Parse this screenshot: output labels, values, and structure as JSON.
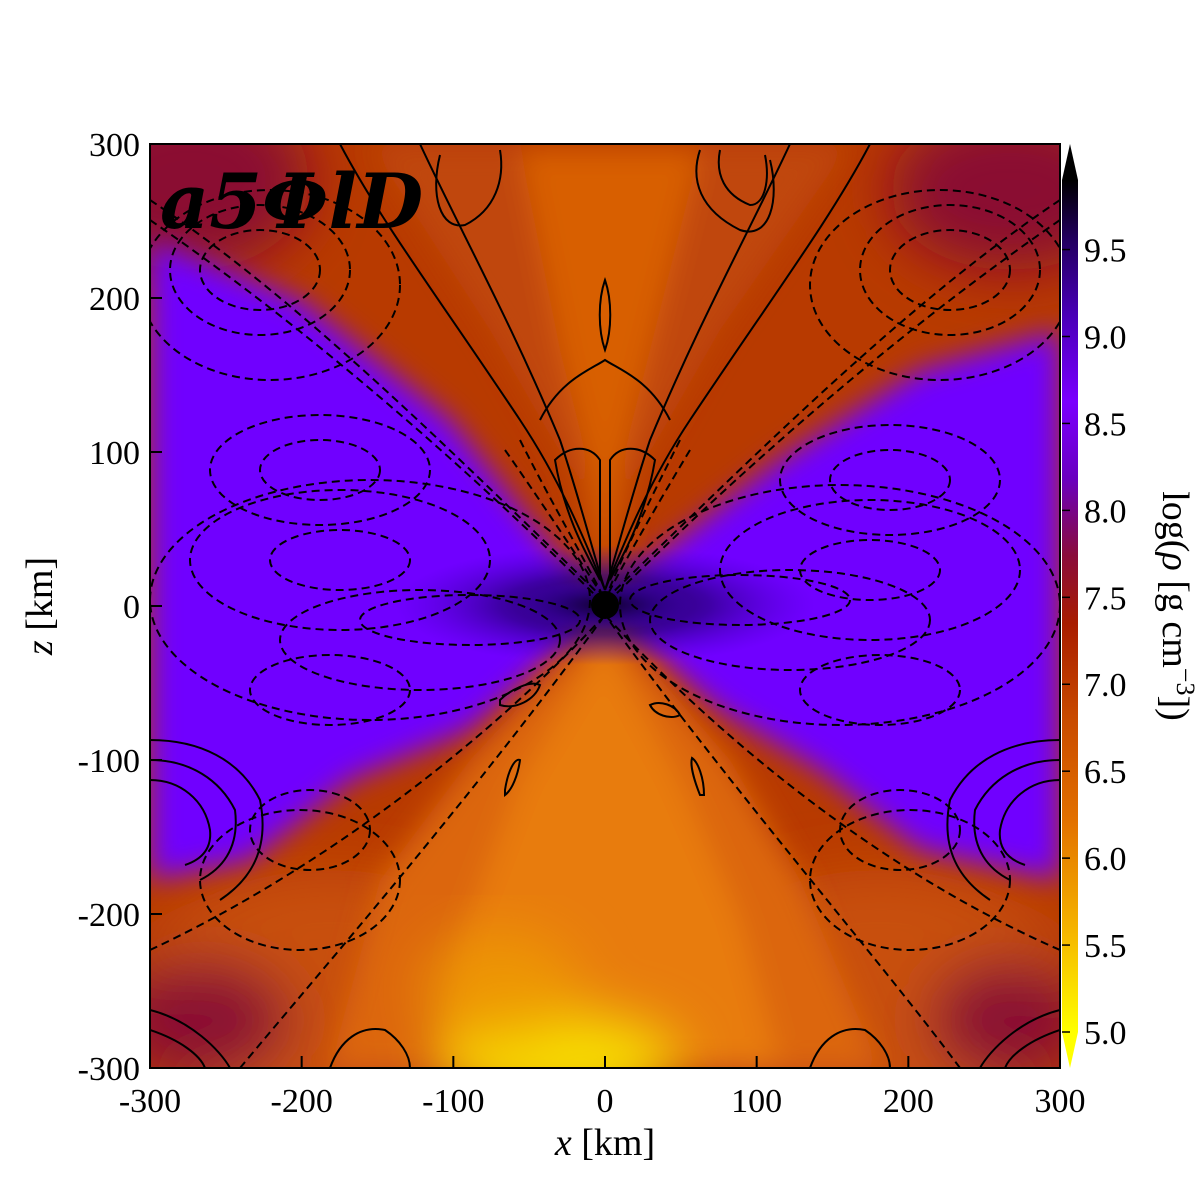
{
  "chart_data": {
    "type": "heatmap",
    "panel_label": "a5ΦlD",
    "xlabel": {
      "var": "x",
      "unit": " [km]"
    },
    "ylabel": {
      "var": "z",
      "unit": " [km]"
    },
    "xlim": [
      -300,
      300
    ],
    "ylim": [
      -300,
      300
    ],
    "xticks": [
      -300,
      -200,
      -100,
      0,
      100,
      200,
      300
    ],
    "xtick_labels": [
      "-300",
      "-200",
      "-100",
      "0",
      "100",
      "200",
      "300"
    ],
    "yticks": [
      -300,
      -200,
      -100,
      0,
      100,
      200,
      300
    ],
    "ytick_labels": [
      "-300",
      "-200",
      "-100",
      "0",
      "100",
      "200",
      "300"
    ],
    "colorbar": {
      "label_parts": [
        "log(",
        "ρ",
        " [g cm",
        "−3",
        "])"
      ],
      "range": [
        4.8,
        10.0
      ],
      "ticks": [
        5.0,
        5.5,
        6.0,
        6.5,
        7.0,
        7.5,
        8.0,
        8.5,
        9.0,
        9.5
      ],
      "tick_labels": [
        "5.0",
        "5.5",
        "6.0",
        "6.5",
        "7.0",
        "7.5",
        "8.0",
        "8.5",
        "9.0",
        "9.5"
      ],
      "extend": "both",
      "colors": [
        "#ffff00",
        "#f5b400",
        "#e27000",
        "#c84a00",
        "#a81c00",
        "#8a0c3c",
        "#6a00c0",
        "#7a00ff",
        "#4a00b8",
        "#220060",
        "#000000"
      ]
    },
    "density_regions": [
      {
        "region": "equatorial torus (|x| > 30 km, near z = 0)",
        "log_rho": 8.8
      },
      {
        "region": "inner torus near black hole",
        "log_rho": 9.5
      },
      {
        "region": "upper polar funnel",
        "log_rho": 7.0
      },
      {
        "region": "lower polar funnel",
        "log_rho": 6.2
      },
      {
        "region": "bottom center (z ≈ -290 km)",
        "log_rho": 5.2
      },
      {
        "region": "top corners",
        "log_rho": 7.5
      }
    ],
    "central_object": {
      "x": 0,
      "z": 0,
      "radius_km": 9
    },
    "contours": {
      "solid": "positive field lines",
      "dashed": "negative field lines"
    }
  }
}
